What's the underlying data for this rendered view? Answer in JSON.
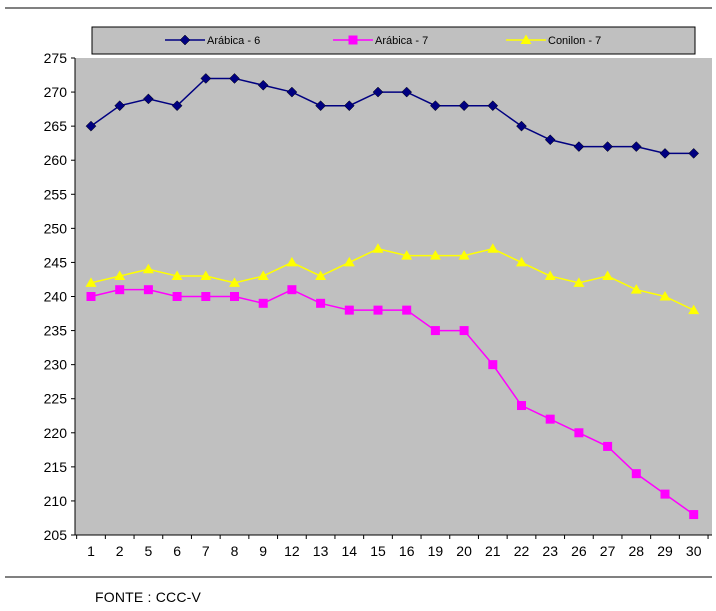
{
  "chart_data": {
    "type": "line",
    "categories": [
      "1",
      "2",
      "5",
      "6",
      "7",
      "8",
      "9",
      "12",
      "13",
      "14",
      "15",
      "16",
      "19",
      "20",
      "21",
      "22",
      "23",
      "26",
      "27",
      "28",
      "29",
      "30"
    ],
    "series": [
      {
        "name": "Arábica - 6",
        "color": "#000080",
        "marker": "diamond",
        "values": [
          265,
          268,
          269,
          268,
          272,
          272,
          271,
          270,
          268,
          268,
          270,
          270,
          268,
          268,
          268,
          265,
          263,
          262,
          262,
          262,
          261,
          261
        ]
      },
      {
        "name": "Arábica - 7",
        "color": "#ff00ff",
        "marker": "square",
        "values": [
          240,
          241,
          241,
          240,
          240,
          240,
          239,
          241,
          239,
          238,
          238,
          238,
          235,
          235,
          230,
          224,
          222,
          220,
          218,
          214,
          211,
          208
        ]
      },
      {
        "name": "Conilon - 7",
        "color": "#ffff00",
        "marker": "triangle",
        "values": [
          242,
          243,
          244,
          243,
          243,
          242,
          243,
          245,
          243,
          245,
          247,
          246,
          246,
          246,
          247,
          245,
          243,
          242,
          243,
          241,
          240,
          238
        ]
      }
    ],
    "yticks": [
      205,
      210,
      215,
      220,
      225,
      230,
      235,
      240,
      245,
      250,
      255,
      260,
      265,
      270,
      275
    ],
    "ylim": [
      205,
      275
    ],
    "legend": "top",
    "grid": false,
    "plot_background": "#c0c0c0",
    "title": "",
    "xlabel": "",
    "ylabel": ""
  },
  "source_note": "FONTE :  CCC-V"
}
